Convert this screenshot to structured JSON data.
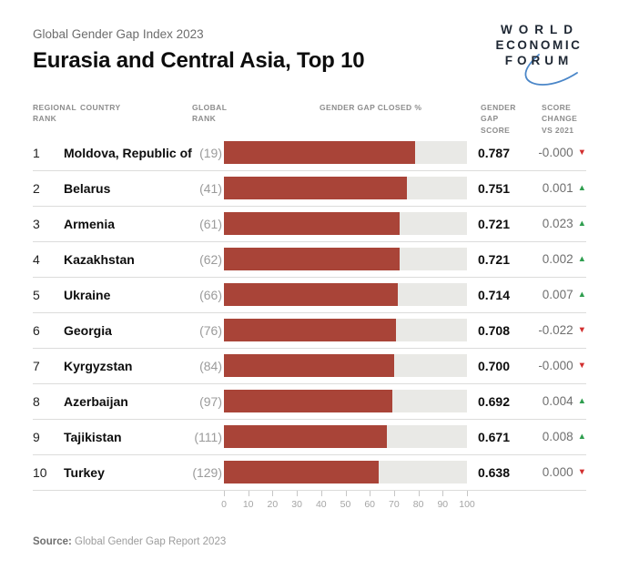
{
  "header": {
    "kicker": "Global Gender Gap Index 2023",
    "title": "Eurasia and Central Asia, Top 10"
  },
  "logo": {
    "line1": "WORLD",
    "line2": "ECONOMIC",
    "line3": "FORUM",
    "text_color": "#1e2733",
    "arc_color": "#4a86c8"
  },
  "table": {
    "columns": {
      "regional_rank": "REGIONAL RANK",
      "country": "COUNTRY",
      "global_rank": "GLOBAL RANK",
      "gap_closed": "GENDER GAP CLOSED %",
      "score": "GENDER GAP SCORE",
      "change": "SCORE CHANGE VS 2021"
    },
    "rows": [
      {
        "rank": "1",
        "country": "Moldova, Republic of",
        "global_rank": "(19)",
        "gap_closed_pct": 78.7,
        "score": "0.787",
        "change": "-0.000",
        "direction": "down"
      },
      {
        "rank": "2",
        "country": "Belarus",
        "global_rank": "(41)",
        "gap_closed_pct": 75.1,
        "score": "0.751",
        "change": "0.001",
        "direction": "up"
      },
      {
        "rank": "3",
        "country": "Armenia",
        "global_rank": "(61)",
        "gap_closed_pct": 72.1,
        "score": "0.721",
        "change": "0.023",
        "direction": "up"
      },
      {
        "rank": "4",
        "country": "Kazakhstan",
        "global_rank": "(62)",
        "gap_closed_pct": 72.1,
        "score": "0.721",
        "change": "0.002",
        "direction": "up"
      },
      {
        "rank": "5",
        "country": "Ukraine",
        "global_rank": "(66)",
        "gap_closed_pct": 71.4,
        "score": "0.714",
        "change": "0.007",
        "direction": "up"
      },
      {
        "rank": "6",
        "country": "Georgia",
        "global_rank": "(76)",
        "gap_closed_pct": 70.8,
        "score": "0.708",
        "change": "-0.022",
        "direction": "down"
      },
      {
        "rank": "7",
        "country": "Kyrgyzstan",
        "global_rank": "(84)",
        "gap_closed_pct": 70.0,
        "score": "0.700",
        "change": "-0.000",
        "direction": "down"
      },
      {
        "rank": "8",
        "country": "Azerbaijan",
        "global_rank": "(97)",
        "gap_closed_pct": 69.2,
        "score": "0.692",
        "change": "0.004",
        "direction": "up"
      },
      {
        "rank": "9",
        "country": "Tajikistan",
        "global_rank": "(111)",
        "gap_closed_pct": 67.1,
        "score": "0.671",
        "change": "0.008",
        "direction": "up"
      },
      {
        "rank": "10",
        "country": "Turkey",
        "global_rank": "(129)",
        "gap_closed_pct": 63.8,
        "score": "0.638",
        "change": "0.000",
        "direction": "down"
      }
    ]
  },
  "axis": {
    "ticks": [
      "0",
      "10",
      "20",
      "30",
      "40",
      "50",
      "60",
      "70",
      "80",
      "90",
      "100"
    ]
  },
  "footer": {
    "source_label": "Source:",
    "source_text": "Global Gender Gap Report 2023"
  },
  "glyphs": {
    "up_arrow": "▲",
    "down_arrow": "▼"
  },
  "colors": {
    "bar": "#a94438",
    "track": "#e9e9e6",
    "up": "#2f9e4f",
    "down": "#d22f2f"
  },
  "chart_data": {
    "type": "bar",
    "orientation": "horizontal",
    "title": "Eurasia and Central Asia, Top 10",
    "subtitle": "Global Gender Gap Index 2023",
    "categories": [
      "Moldova, Republic of",
      "Belarus",
      "Armenia",
      "Kazakhstan",
      "Ukraine",
      "Georgia",
      "Kyrgyzstan",
      "Azerbaijan",
      "Tajikistan",
      "Turkey"
    ],
    "regional_ranks": [
      1,
      2,
      3,
      4,
      5,
      6,
      7,
      8,
      9,
      10
    ],
    "global_ranks": [
      19,
      41,
      61,
      62,
      66,
      76,
      84,
      97,
      111,
      129
    ],
    "series": [
      {
        "name": "Gender gap closed %",
        "values": [
          78.7,
          75.1,
          72.1,
          72.1,
          71.4,
          70.8,
          70.0,
          69.2,
          67.1,
          63.8
        ]
      },
      {
        "name": "Gender gap score",
        "values": [
          0.787,
          0.751,
          0.721,
          0.721,
          0.714,
          0.708,
          0.7,
          0.692,
          0.671,
          0.638
        ]
      },
      {
        "name": "Score change vs 2021",
        "values": [
          "-0.000",
          "0.001",
          "0.023",
          "0.002",
          "0.007",
          "-0.022",
          "-0.000",
          "0.004",
          "0.008",
          "0.000"
        ]
      }
    ],
    "xlabel": "Gender gap closed %",
    "xlim": [
      0,
      100
    ],
    "x_ticks": [
      0,
      10,
      20,
      30,
      40,
      50,
      60,
      70,
      80,
      90,
      100
    ],
    "grid": false,
    "legend": false,
    "source": "Global Gender Gap Report 2023"
  }
}
